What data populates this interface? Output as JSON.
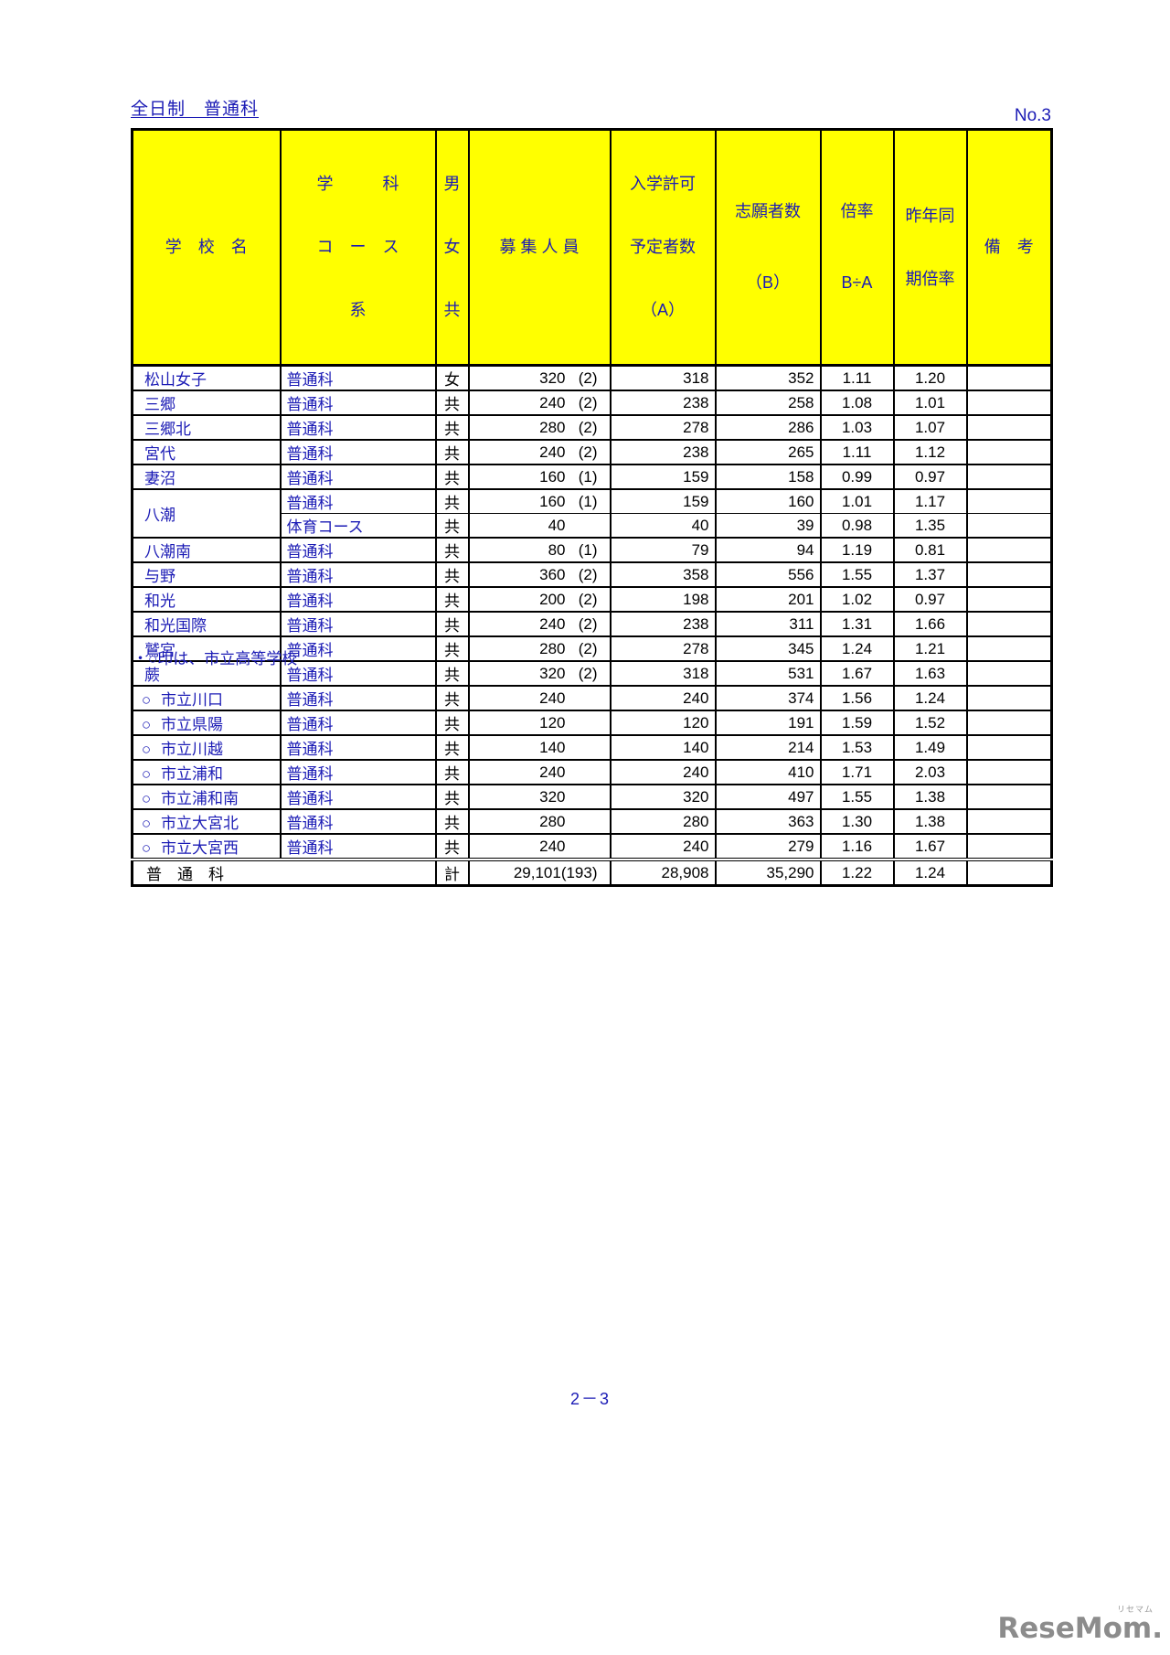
{
  "page": {
    "title": "全日制　普通科",
    "page_no": "No.3",
    "footnote": "・○印は、市立高等学校",
    "page_number": "2－3",
    "watermark": {
      "main": "ReseMom.",
      "small": "リセマム"
    }
  },
  "colors": {
    "text_blue": "#1b1bb5",
    "header_yellow": "#ffff00",
    "border_black": "#000000",
    "logo_gray": "#8c8c8c"
  },
  "table": {
    "headers": {
      "school": "学　校　名",
      "course_line1": "学　　　科",
      "course_line2": "コ　ー　ス",
      "course_line3": "系",
      "gender": [
        "男",
        "女",
        "共"
      ],
      "recruit": "募 集 人 員",
      "admit_line1": "入学許可",
      "admit_line2": "予定者数",
      "admit_line3": "（A）",
      "applicants_line1": "志願者数",
      "applicants_line2": "（B）",
      "ratio_line1": "倍率",
      "ratio_line2": "B÷A",
      "last_year_line1": "昨年同",
      "last_year_line2": "期倍率",
      "remarks": "備　考"
    },
    "rows": [
      {
        "circle": "",
        "school": "松山女子",
        "course": "普通科",
        "gender": "女",
        "recruit": "320",
        "recruit_paren": "(2)",
        "admit": "318",
        "applicants": "352",
        "ratio": "1.11",
        "last_year": "1.20",
        "remarks": ""
      },
      {
        "circle": "",
        "school": "三郷",
        "course": "普通科",
        "gender": "共",
        "recruit": "240",
        "recruit_paren": "(2)",
        "admit": "238",
        "applicants": "258",
        "ratio": "1.08",
        "last_year": "1.01",
        "remarks": ""
      },
      {
        "circle": "",
        "school": "三郷北",
        "course": "普通科",
        "gender": "共",
        "recruit": "280",
        "recruit_paren": "(2)",
        "admit": "278",
        "applicants": "286",
        "ratio": "1.03",
        "last_year": "1.07",
        "remarks": ""
      },
      {
        "circle": "",
        "school": "宮代",
        "course": "普通科",
        "gender": "共",
        "recruit": "240",
        "recruit_paren": "(2)",
        "admit": "238",
        "applicants": "265",
        "ratio": "1.11",
        "last_year": "1.12",
        "remarks": ""
      },
      {
        "circle": "",
        "school": "妻沼",
        "course": "普通科",
        "gender": "共",
        "recruit": "160",
        "recruit_paren": "(1)",
        "admit": "159",
        "applicants": "158",
        "ratio": "0.99",
        "last_year": "0.97",
        "remarks": ""
      },
      {
        "circle": "",
        "school": "八潮",
        "course": "普通科",
        "gender": "共",
        "recruit": "160",
        "recruit_paren": "(1)",
        "admit": "159",
        "applicants": "160",
        "ratio": "1.01",
        "last_year": "1.17",
        "remarks": "",
        "school_rowspan": 2
      },
      {
        "circle": "",
        "school": "",
        "course": "体育コース",
        "gender": "共",
        "recruit": "40",
        "recruit_paren": "",
        "admit": "40",
        "applicants": "39",
        "ratio": "0.98",
        "last_year": "1.35",
        "remarks": "",
        "merged_school": true,
        "sub": true
      },
      {
        "circle": "",
        "school": "八潮南",
        "course": "普通科",
        "gender": "共",
        "recruit": "80",
        "recruit_paren": "(1)",
        "admit": "79",
        "applicants": "94",
        "ratio": "1.19",
        "last_year": "0.81",
        "remarks": ""
      },
      {
        "circle": "",
        "school": "与野",
        "course": "普通科",
        "gender": "共",
        "recruit": "360",
        "recruit_paren": "(2)",
        "admit": "358",
        "applicants": "556",
        "ratio": "1.55",
        "last_year": "1.37",
        "remarks": ""
      },
      {
        "circle": "",
        "school": "和光",
        "course": "普通科",
        "gender": "共",
        "recruit": "200",
        "recruit_paren": "(2)",
        "admit": "198",
        "applicants": "201",
        "ratio": "1.02",
        "last_year": "0.97",
        "remarks": ""
      },
      {
        "circle": "",
        "school": "和光国際",
        "course": "普通科",
        "gender": "共",
        "recruit": "240",
        "recruit_paren": "(2)",
        "admit": "238",
        "applicants": "311",
        "ratio": "1.31",
        "last_year": "1.66",
        "remarks": ""
      },
      {
        "circle": "",
        "school": "鷲宮",
        "course": "普通科",
        "gender": "共",
        "recruit": "280",
        "recruit_paren": "(2)",
        "admit": "278",
        "applicants": "345",
        "ratio": "1.24",
        "last_year": "1.21",
        "remarks": ""
      },
      {
        "circle": "",
        "school": "蕨",
        "course": "普通科",
        "gender": "共",
        "recruit": "320",
        "recruit_paren": "(2)",
        "admit": "318",
        "applicants": "531",
        "ratio": "1.67",
        "last_year": "1.63",
        "remarks": ""
      },
      {
        "circle": "○",
        "school": "市立川口",
        "course": "普通科",
        "gender": "共",
        "recruit": "240",
        "recruit_paren": "",
        "admit": "240",
        "applicants": "374",
        "ratio": "1.56",
        "last_year": "1.24",
        "remarks": ""
      },
      {
        "circle": "○",
        "school": "市立県陽",
        "course": "普通科",
        "gender": "共",
        "recruit": "120",
        "recruit_paren": "",
        "admit": "120",
        "applicants": "191",
        "ratio": "1.59",
        "last_year": "1.52",
        "remarks": ""
      },
      {
        "circle": "○",
        "school": "市立川越",
        "course": "普通科",
        "gender": "共",
        "recruit": "140",
        "recruit_paren": "",
        "admit": "140",
        "applicants": "214",
        "ratio": "1.53",
        "last_year": "1.49",
        "remarks": ""
      },
      {
        "circle": "○",
        "school": "市立浦和",
        "course": "普通科",
        "gender": "共",
        "recruit": "240",
        "recruit_paren": "",
        "admit": "240",
        "applicants": "410",
        "ratio": "1.71",
        "last_year": "2.03",
        "remarks": ""
      },
      {
        "circle": "○",
        "school": "市立浦和南",
        "course": "普通科",
        "gender": "共",
        "recruit": "320",
        "recruit_paren": "",
        "admit": "320",
        "applicants": "497",
        "ratio": "1.55",
        "last_year": "1.38",
        "remarks": ""
      },
      {
        "circle": "○",
        "school": "市立大宮北",
        "course": "普通科",
        "gender": "共",
        "recruit": "280",
        "recruit_paren": "",
        "admit": "280",
        "applicants": "363",
        "ratio": "1.30",
        "last_year": "1.38",
        "remarks": ""
      },
      {
        "circle": "○",
        "school": "市立大宮西",
        "course": "普通科",
        "gender": "共",
        "recruit": "240",
        "recruit_paren": "",
        "admit": "240",
        "applicants": "279",
        "ratio": "1.16",
        "last_year": "1.67",
        "remarks": ""
      }
    ],
    "total": {
      "label": "普　通　科",
      "gender_label": "計",
      "recruit": "29,101",
      "recruit_paren": "(193)",
      "admit": "28,908",
      "applicants": "35,290",
      "ratio": "1.22",
      "last_year": "1.24",
      "remarks": ""
    }
  }
}
